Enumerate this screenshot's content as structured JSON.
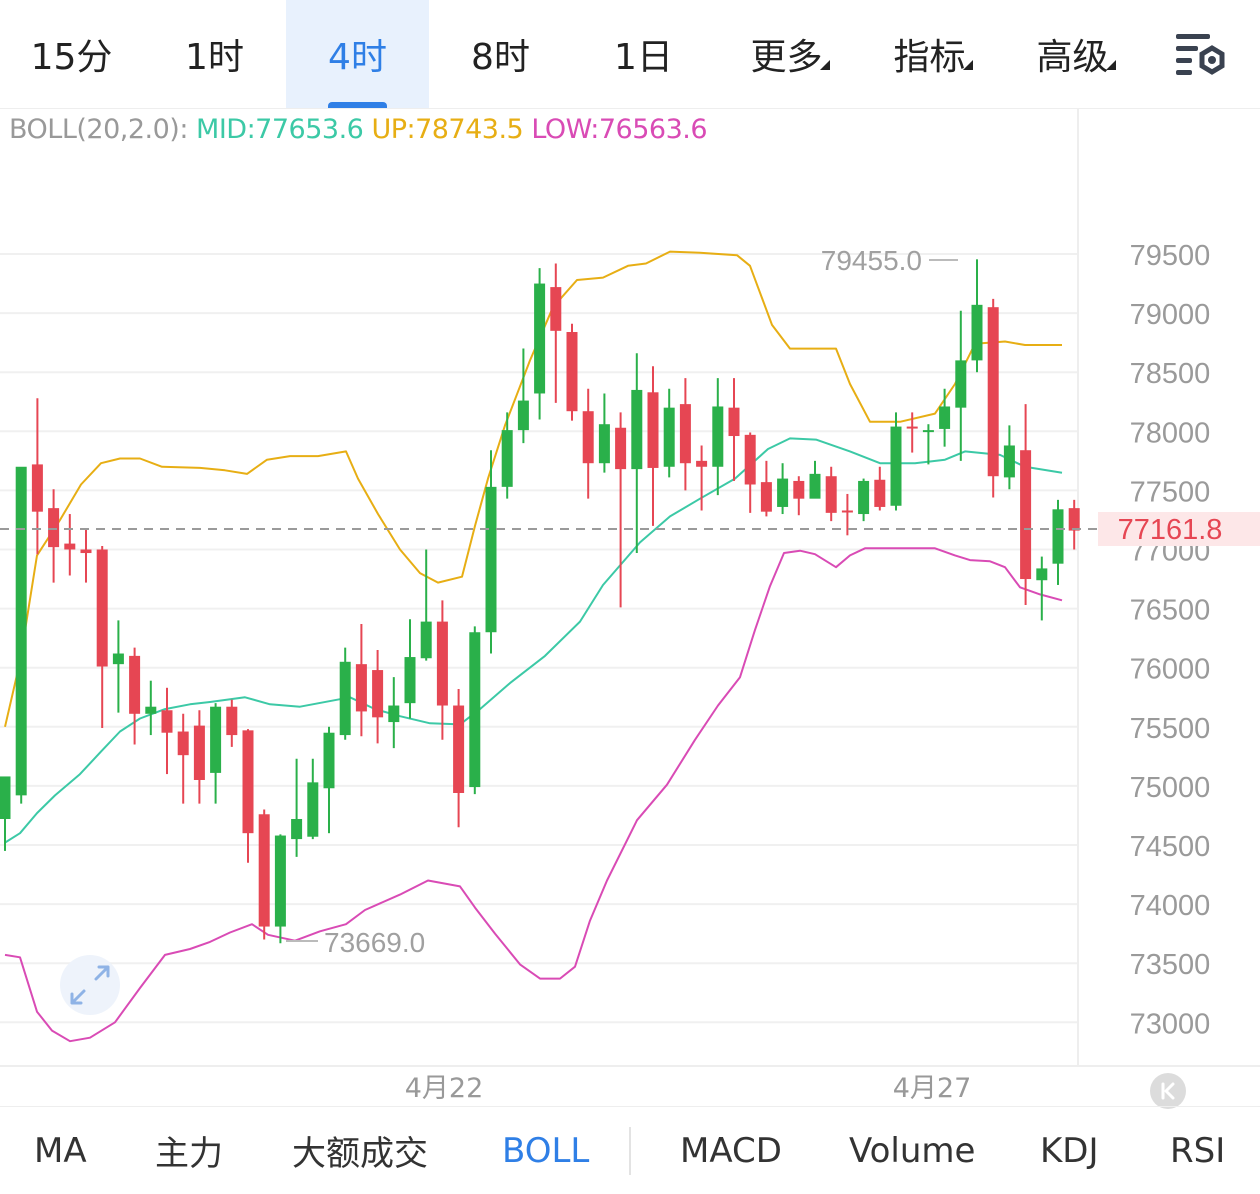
{
  "tabs": [
    {
      "label": "15分",
      "active": false,
      "dropdown": false
    },
    {
      "label": "1时",
      "active": false,
      "dropdown": false
    },
    {
      "label": "4时",
      "active": true,
      "dropdown": false
    },
    {
      "label": "8时",
      "active": false,
      "dropdown": false
    },
    {
      "label": "1日",
      "active": false,
      "dropdown": false
    },
    {
      "label": "更多",
      "active": false,
      "dropdown": true
    },
    {
      "label": "指标",
      "active": false,
      "dropdown": true
    },
    {
      "label": "高级",
      "active": false,
      "dropdown": true
    }
  ],
  "settings_icon": "chart-settings-icon",
  "legend": {
    "name": "BOLL(20,2.0):",
    "mid": "MID:77653.6",
    "up": "UP:78743.5",
    "low": "LOW:76563.6"
  },
  "colors": {
    "up_candle": "#2ab04a",
    "down_candle": "#e64653",
    "mid_line": "#3cc9a6",
    "upper_band": "#e7ae14",
    "lower_band": "#d94bb5",
    "accent": "#2f7fe6",
    "price_tag": "#e64653",
    "legend_label": "#999999"
  },
  "chart_data": {
    "type": "candlestick",
    "indicator": "BOLL(20,2.0)",
    "y_ticks": [
      "79500",
      "79000",
      "78500",
      "78000",
      "77500",
      "77000",
      "76500",
      "76000",
      "75500",
      "75000",
      "74500",
      "74000",
      "73500",
      "73000"
    ],
    "y_range": [
      72850,
      80200
    ],
    "x_labels": [
      "4月22",
      "4月27"
    ],
    "current_price": "77161.8",
    "high_marker": "79455.0",
    "low_marker": "73669.0",
    "candles": [
      [
        74720,
        75080,
        74450,
        74900
      ],
      [
        74920,
        77700,
        74850,
        77620
      ],
      [
        77720,
        77320,
        78280,
        76960
      ],
      [
        77350,
        77020,
        77510,
        76720
      ],
      [
        77050,
        77000,
        77300,
        76780
      ],
      [
        77000,
        76970,
        77180,
        76720
      ],
      [
        77000,
        76010,
        77030,
        75490
      ],
      [
        76030,
        76120,
        76400,
        75620
      ],
      [
        76100,
        75610,
        76170,
        75350
      ],
      [
        75610,
        75670,
        75890,
        75430
      ],
      [
        75640,
        75450,
        75830,
        75100
      ],
      [
        75460,
        75260,
        75610,
        74850
      ],
      [
        75510,
        75050,
        75640,
        74850
      ],
      [
        75110,
        75670,
        75700,
        74850
      ],
      [
        75670,
        75430,
        75730,
        75330
      ],
      [
        75470,
        74600,
        75480,
        74350
      ],
      [
        74760,
        73810,
        74800,
        73700
      ],
      [
        73810,
        74580,
        74590,
        73669
      ],
      [
        74550,
        74720,
        75230,
        74400
      ],
      [
        74570,
        75030,
        75230,
        74550
      ],
      [
        74980,
        75450,
        75500,
        74600
      ],
      [
        75430,
        76050,
        76170,
        75390
      ],
      [
        76030,
        75630,
        76370,
        75420
      ],
      [
        75980,
        75580,
        76150,
        75360
      ],
      [
        75540,
        75680,
        75920,
        75320
      ],
      [
        75700,
        76090,
        76410,
        75570
      ],
      [
        76080,
        76390,
        77000,
        76060
      ],
      [
        76390,
        75680,
        76570,
        75390
      ],
      [
        75680,
        74940,
        75820,
        74650
      ],
      [
        74990,
        76300,
        76350,
        74930
      ],
      [
        76300,
        77530,
        77840,
        76120
      ],
      [
        77530,
        78010,
        78160,
        77430
      ],
      [
        78010,
        78260,
        78700,
        77900
      ],
      [
        78320,
        79250,
        79380,
        78100
      ],
      [
        79220,
        78850,
        79420,
        78240
      ],
      [
        78840,
        78170,
        78910,
        78090
      ],
      [
        78170,
        77730,
        78360,
        77430
      ],
      [
        77730,
        78060,
        78320,
        77650
      ],
      [
        78030,
        77680,
        78160,
        76510
      ],
      [
        77680,
        78350,
        78660,
        76970
      ],
      [
        78330,
        77690,
        78550,
        77200
      ],
      [
        77700,
        78200,
        78360,
        77610
      ],
      [
        78230,
        77730,
        78450,
        77500
      ],
      [
        77750,
        77700,
        77880,
        77330
      ],
      [
        77700,
        78210,
        78450,
        77460
      ],
      [
        78200,
        77960,
        78450,
        77580
      ],
      [
        77970,
        77550,
        77990,
        77310
      ],
      [
        77570,
        77320,
        77750,
        77280
      ],
      [
        77360,
        77600,
        77730,
        77300
      ],
      [
        77580,
        77430,
        77620,
        77290
      ],
      [
        77430,
        77640,
        77750,
        77500
      ],
      [
        77620,
        77310,
        77700,
        77240
      ],
      [
        77330,
        77320,
        77470,
        77120
      ],
      [
        77300,
        77580,
        77600,
        77240
      ],
      [
        77590,
        77360,
        77700,
        77330
      ],
      [
        77370,
        78040,
        78160,
        77330
      ],
      [
        78040,
        78030,
        78160,
        77820
      ],
      [
        78010,
        78010,
        78060,
        77720
      ],
      [
        78020,
        78210,
        78360,
        77870
      ],
      [
        78200,
        78600,
        79020,
        77750
      ],
      [
        78600,
        79070,
        79455,
        78500
      ],
      [
        79050,
        77620,
        79120,
        77440
      ],
      [
        77610,
        77880,
        78050,
        77510
      ],
      [
        77840,
        76750,
        78230,
        76530
      ],
      [
        76740,
        76840,
        76940,
        76400
      ],
      [
        76880,
        77340,
        77420,
        76700
      ],
      [
        77350,
        77160,
        77420,
        77000
      ]
    ],
    "upper": [
      [
        5,
        75500
      ],
      [
        20,
        76050
      ],
      [
        37,
        76950
      ],
      [
        60,
        77250
      ],
      [
        81,
        77550
      ],
      [
        101,
        77730
      ],
      [
        120,
        77770
      ],
      [
        140,
        77770
      ],
      [
        162,
        77700
      ],
      [
        200,
        77690
      ],
      [
        225,
        77670
      ],
      [
        247,
        77640
      ],
      [
        267,
        77760
      ],
      [
        290,
        77790
      ],
      [
        318,
        77790
      ],
      [
        346,
        77830
      ],
      [
        358,
        77600
      ],
      [
        378,
        77300
      ],
      [
        400,
        77000
      ],
      [
        420,
        76800
      ],
      [
        438,
        76720
      ],
      [
        462,
        76770
      ],
      [
        475,
        77200
      ],
      [
        488,
        77600
      ],
      [
        505,
        78050
      ],
      [
        530,
        78600
      ],
      [
        553,
        79050
      ],
      [
        577,
        79280
      ],
      [
        603,
        79300
      ],
      [
        628,
        79400
      ],
      [
        646,
        79420
      ],
      [
        670,
        79520
      ],
      [
        700,
        79510
      ],
      [
        737,
        79490
      ],
      [
        750,
        79400
      ],
      [
        772,
        78900
      ],
      [
        790,
        78700
      ],
      [
        836,
        78700
      ],
      [
        850,
        78400
      ],
      [
        870,
        78080
      ],
      [
        900,
        78080
      ],
      [
        935,
        78150
      ],
      [
        955,
        78400
      ],
      [
        975,
        78740
      ],
      [
        1005,
        78760
      ],
      [
        1025,
        78730
      ],
      [
        1062,
        78730
      ]
    ],
    "mid": [
      [
        5,
        74520
      ],
      [
        20,
        74600
      ],
      [
        37,
        74770
      ],
      [
        55,
        74920
      ],
      [
        80,
        75100
      ],
      [
        101,
        75290
      ],
      [
        120,
        75460
      ],
      [
        140,
        75570
      ],
      [
        165,
        75650
      ],
      [
        190,
        75690
      ],
      [
        210,
        75710
      ],
      [
        245,
        75750
      ],
      [
        270,
        75690
      ],
      [
        300,
        75670
      ],
      [
        350,
        75750
      ],
      [
        375,
        75650
      ],
      [
        400,
        75590
      ],
      [
        430,
        75530
      ],
      [
        460,
        75520
      ],
      [
        480,
        75650
      ],
      [
        510,
        75870
      ],
      [
        545,
        76100
      ],
      [
        580,
        76390
      ],
      [
        603,
        76700
      ],
      [
        640,
        77060
      ],
      [
        670,
        77280
      ],
      [
        700,
        77430
      ],
      [
        735,
        77600
      ],
      [
        768,
        77850
      ],
      [
        790,
        77940
      ],
      [
        816,
        77930
      ],
      [
        850,
        77830
      ],
      [
        880,
        77730
      ],
      [
        915,
        77730
      ],
      [
        945,
        77760
      ],
      [
        965,
        77830
      ],
      [
        1000,
        77800
      ],
      [
        1025,
        77700
      ],
      [
        1062,
        77650
      ]
    ],
    "lower": [
      [
        5,
        73570
      ],
      [
        20,
        73550
      ],
      [
        37,
        73090
      ],
      [
        52,
        72930
      ],
      [
        70,
        72840
      ],
      [
        90,
        72870
      ],
      [
        115,
        73000
      ],
      [
        140,
        73290
      ],
      [
        165,
        73570
      ],
      [
        190,
        73620
      ],
      [
        210,
        73680
      ],
      [
        230,
        73760
      ],
      [
        252,
        73830
      ],
      [
        268,
        73740
      ],
      [
        295,
        73690
      ],
      [
        320,
        73770
      ],
      [
        346,
        73830
      ],
      [
        365,
        73950
      ],
      [
        400,
        74080
      ],
      [
        428,
        74200
      ],
      [
        460,
        74150
      ],
      [
        475,
        73970
      ],
      [
        495,
        73750
      ],
      [
        520,
        73490
      ],
      [
        540,
        73370
      ],
      [
        560,
        73370
      ],
      [
        575,
        73470
      ],
      [
        590,
        73860
      ],
      [
        607,
        74200
      ],
      [
        637,
        74710
      ],
      [
        667,
        75010
      ],
      [
        695,
        75390
      ],
      [
        718,
        75680
      ],
      [
        740,
        75920
      ],
      [
        755,
        76320
      ],
      [
        770,
        76690
      ],
      [
        784,
        76970
      ],
      [
        800,
        76990
      ],
      [
        815,
        76960
      ],
      [
        836,
        76850
      ],
      [
        850,
        76950
      ],
      [
        865,
        77010
      ],
      [
        935,
        77010
      ],
      [
        955,
        76950
      ],
      [
        970,
        76910
      ],
      [
        990,
        76900
      ],
      [
        1005,
        76850
      ],
      [
        1020,
        76680
      ],
      [
        1040,
        76620
      ],
      [
        1062,
        76570
      ]
    ]
  },
  "bottom_tabs": [
    {
      "label": "MA",
      "active": false
    },
    {
      "label": "主力",
      "active": false
    },
    {
      "label": "大额成交",
      "active": false
    },
    {
      "label": "BOLL",
      "active": true
    },
    {
      "label": "MACD",
      "active": false
    },
    {
      "label": "Volume",
      "active": false
    },
    {
      "label": "KDJ",
      "active": false
    },
    {
      "label": "RSI",
      "active": false
    }
  ],
  "expand_icon": "expand-arrows-icon",
  "scroll_latest_icon": "scroll-to-latest-icon"
}
